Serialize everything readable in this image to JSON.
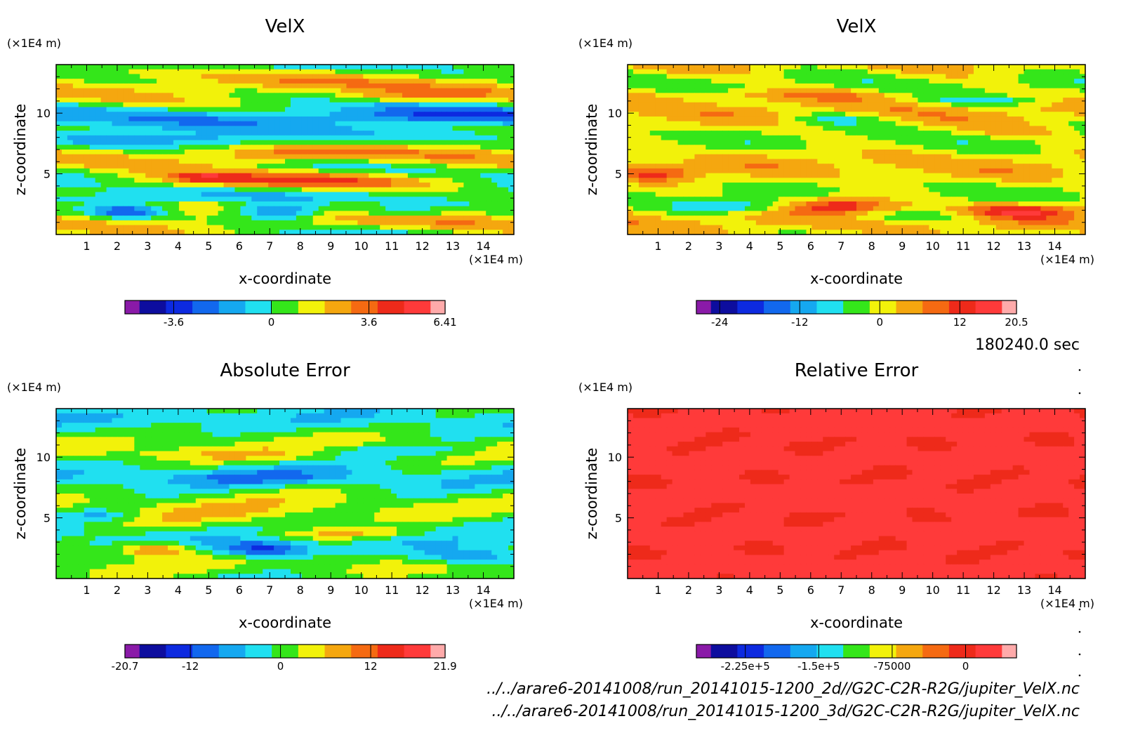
{
  "time_label": "180240.0 sec",
  "footer_lines": [
    "../../arare6-20141008/run_20141015-1200_2d//G2C-C2R-R2G/jupiter_VelX.nc",
    "../../arare6-20141008/run_20141015-1200_3d/G2C-C2R-R2G/jupiter_VelX.nc"
  ],
  "chart_data": [
    {
      "type": "heatmap",
      "title": "VelX",
      "xlabel": "x-coordinate",
      "ylabel": "z-coordinate",
      "x_unit": "(×1E4 m)",
      "y_unit": "(×1E4 m)",
      "xlim": [
        0,
        15
      ],
      "ylim": [
        0,
        14
      ],
      "x_ticks": [
        1,
        2,
        3,
        4,
        5,
        6,
        7,
        8,
        9,
        10,
        11,
        12,
        13,
        14
      ],
      "y_ticks": [
        5,
        10
      ],
      "colorbar": {
        "min": -5.4,
        "max": 6.41,
        "colors": [
          "#8a1aa8",
          "#0d0d9e",
          "#0d2ae0",
          "#1268ee",
          "#15a8f0",
          "#20e0f0",
          "#34e61a",
          "#f2f20a",
          "#f5a70f",
          "#f56a12",
          "#ee2a1a",
          "#ff3a3a",
          "#ffaaaa"
        ],
        "labels": [
          "-3.6",
          "0",
          "3.6",
          "6.41"
        ],
        "label_values": [
          -3.6,
          0,
          3.6,
          6.41
        ]
      }
    },
    {
      "type": "heatmap",
      "title": "VelX",
      "xlabel": "x-coordinate",
      "ylabel": "z-coordinate",
      "x_unit": "(×1E4 m)",
      "y_unit": "(×1E4 m)",
      "xlim": [
        0,
        15
      ],
      "ylim": [
        0,
        14
      ],
      "x_ticks": [
        1,
        2,
        3,
        4,
        5,
        6,
        7,
        8,
        9,
        10,
        11,
        12,
        13,
        14
      ],
      "y_ticks": [
        5,
        10
      ],
      "colorbar": {
        "min": -27.5,
        "max": 20.5,
        "colors": [
          "#8a1aa8",
          "#0d0d9e",
          "#0d2ae0",
          "#1268ee",
          "#15a8f0",
          "#20e0f0",
          "#34e61a",
          "#f2f20a",
          "#f5a70f",
          "#f56a12",
          "#ee2a1a",
          "#ff3a3a",
          "#ffaaaa"
        ],
        "labels": [
          "-24",
          "-12",
          "0",
          "12",
          "20.5"
        ],
        "label_values": [
          -24,
          -12,
          0,
          12,
          20.5
        ]
      }
    },
    {
      "type": "heatmap",
      "title": "Absolute Error",
      "xlabel": "x-coordinate",
      "ylabel": "z-coordinate",
      "x_unit": "(×1E4 m)",
      "y_unit": "(×1E4 m)",
      "xlim": [
        0,
        15
      ],
      "ylim": [
        0,
        14
      ],
      "x_ticks": [
        1,
        2,
        3,
        4,
        5,
        6,
        7,
        8,
        9,
        10,
        11,
        12,
        13,
        14
      ],
      "y_ticks": [
        5,
        10
      ],
      "colorbar": {
        "min": -20.7,
        "max": 21.9,
        "colors": [
          "#8a1aa8",
          "#0d0d9e",
          "#0d2ae0",
          "#1268ee",
          "#15a8f0",
          "#20e0f0",
          "#34e61a",
          "#f2f20a",
          "#f5a70f",
          "#f56a12",
          "#ee2a1a",
          "#ff3a3a",
          "#ffaaaa"
        ],
        "labels": [
          "-20.7",
          "-12",
          "0",
          "12",
          "21.9"
        ],
        "label_values": [
          -20.7,
          -12,
          0,
          12,
          21.9
        ]
      }
    },
    {
      "type": "heatmap",
      "title": "Relative Error",
      "xlabel": "x-coordinate",
      "ylabel": "z-coordinate",
      "x_unit": "(×1E4 m)",
      "y_unit": "(×1E4 m)",
      "xlim": [
        0,
        15
      ],
      "ylim": [
        0,
        14
      ],
      "x_ticks": [
        1,
        2,
        3,
        4,
        5,
        6,
        7,
        8,
        9,
        10,
        11,
        12,
        13,
        14
      ],
      "y_ticks": [
        5,
        10
      ],
      "colorbar": {
        "min": -275000,
        "max": 52000,
        "colors": [
          "#8a1aa8",
          "#0d0d9e",
          "#0d2ae0",
          "#1268ee",
          "#15a8f0",
          "#20e0f0",
          "#34e61a",
          "#f2f20a",
          "#f5a70f",
          "#f56a12",
          "#ee2a1a",
          "#ff3a3a",
          "#ffaaaa"
        ],
        "labels": [
          "-2.25e+5",
          "-1.5e+5",
          "-75000",
          "0"
        ],
        "label_values": [
          -225000,
          -150000,
          -75000,
          0
        ]
      }
    }
  ]
}
